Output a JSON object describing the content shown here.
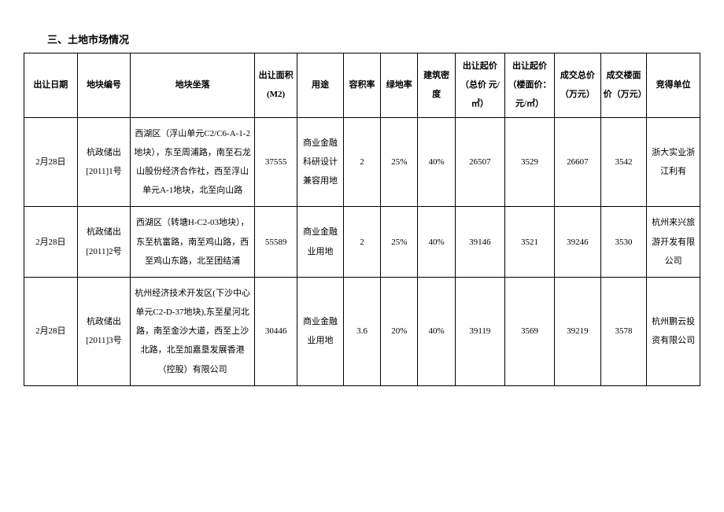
{
  "title": "三、土地市场情况",
  "table": {
    "columns": [
      "出让日期",
      "地块编号",
      "地块坐落",
      "出让面积(M2)",
      "用途",
      "容积率",
      "绿地率",
      "建筑密度",
      "出让起价（总价 元/㎡）",
      "出让起价（楼面价：元/㎡）",
      "成交总价（万元）",
      "成交楼面价（万元）",
      "竞得单位"
    ],
    "rows": [
      {
        "date": "2月28日",
        "code": "杭政储出[2011]1号",
        "location": "西湖区（浮山单元C2/C6-A-1-2地块），东至周浦路，南至石龙山股份经济合作社，西至浮山单元A-1地块，北至向山路",
        "area": "37555",
        "use": "商业金融科研设计兼容用地",
        "ratio": "2",
        "green": "25%",
        "density": "40%",
        "sprice": "26507",
        "uprice": "3529",
        "total": "26607",
        "floor": "3542",
        "winner": "浙大实业浙江利有"
      },
      {
        "date": "2月28日",
        "code": "杭政储出[2011]2号",
        "location": "西湖区（转塘H-C2-03地块），东至杭富路，南至鸡山路，西至鸡山东路，北至团结浦",
        "area": "55589",
        "use": "商业金融业用地",
        "ratio": "2",
        "green": "25%",
        "density": "40%",
        "sprice": "39146",
        "uprice": "3521",
        "total": "39246",
        "floor": "3530",
        "winner": "杭州来兴旅游开发有限公司"
      },
      {
        "date": "2月28日",
        "code": "杭政储出[2011]3号",
        "location": "杭州经济技术开发区(下沙中心单元C2-D-37地块),东至星河北路，南至金沙大道，西至上沙北路，北至加嘉垦发展香港（控股）有限公司",
        "area": "30446",
        "use": "商业金融业用地",
        "ratio": "3.6",
        "green": "20%",
        "density": "40%",
        "sprice": "39119",
        "uprice": "3569",
        "total": "39219",
        "floor": "3578",
        "winner": "杭州鹏云投资有限公司"
      }
    ]
  }
}
